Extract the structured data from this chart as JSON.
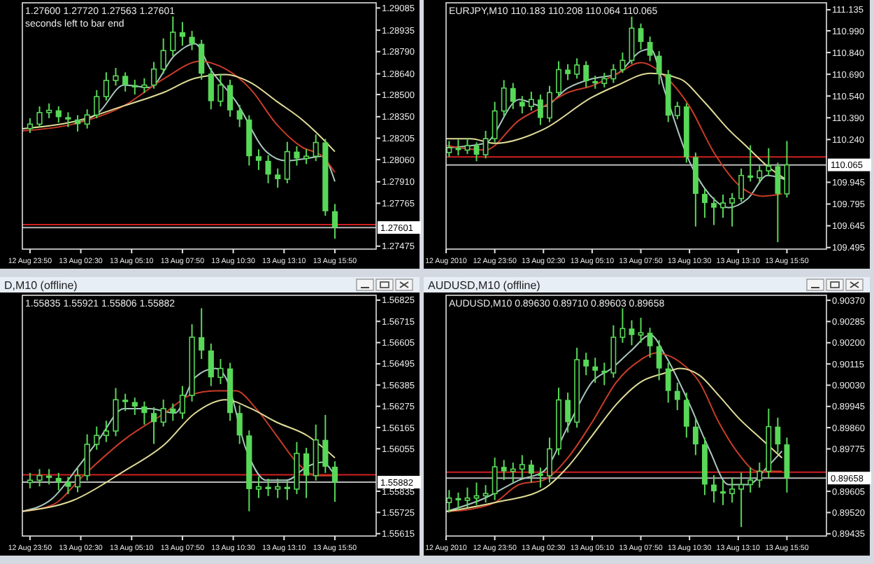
{
  "chart_data": [
    {
      "type": "candlestick",
      "subtitle": "1.27600 1.27720 1.27563 1.27601",
      "annotations": [
        "seconds left to bar end"
      ],
      "color": "#58d858",
      "x": [
        "2010-08-12T23:50",
        "2010-08-13T00:20",
        "2010-08-13T00:50",
        "2010-08-13T01:20",
        "2010-08-13T01:50",
        "2010-08-13T02:20",
        "2010-08-13T02:50",
        "2010-08-13T03:20",
        "2010-08-13T03:50",
        "2010-08-13T04:20",
        "2010-08-13T04:50",
        "2010-08-13T05:20",
        "2010-08-13T05:50",
        "2010-08-13T06:20",
        "2010-08-13T06:50",
        "2010-08-13T07:20",
        "2010-08-13T07:50",
        "2010-08-13T08:20",
        "2010-08-13T08:50",
        "2010-08-13T09:20",
        "2010-08-13T09:50",
        "2010-08-13T10:20",
        "2010-08-13T10:50",
        "2010-08-13T11:20",
        "2010-08-13T11:50",
        "2010-08-13T12:20",
        "2010-08-13T12:50",
        "2010-08-13T13:20",
        "2010-08-13T13:50",
        "2010-08-13T14:20",
        "2010-08-13T14:50",
        "2010-08-13T15:20",
        "2010-08-13T15:50"
      ],
      "ohlc": [
        [
          1.2827,
          1.2834,
          1.2824,
          1.283
        ],
        [
          1.283,
          1.2842,
          1.2828,
          1.28378
        ],
        [
          1.28378,
          1.2844,
          1.2834,
          1.28393
        ],
        [
          1.28393,
          1.2842,
          1.2831,
          1.28347
        ],
        [
          1.28347,
          1.2838,
          1.2828,
          1.28331
        ],
        [
          1.28331,
          1.2836,
          1.2825,
          1.283
        ],
        [
          1.283,
          1.284,
          1.2827,
          1.28362
        ],
        [
          1.28362,
          1.2853,
          1.2834,
          1.28486
        ],
        [
          1.28486,
          1.2865,
          1.2846,
          1.28595
        ],
        [
          1.28595,
          1.2868,
          1.2856,
          1.28626
        ],
        [
          1.28626,
          1.2865,
          1.2852,
          1.28564
        ],
        [
          1.28564,
          1.286,
          1.285,
          1.28548
        ],
        [
          1.28548,
          1.2861,
          1.2851,
          1.28564
        ],
        [
          1.28564,
          1.2872,
          1.2854,
          1.28672
        ],
        [
          1.28672,
          1.2888,
          1.2864,
          1.28797
        ],
        [
          1.28797,
          1.29027,
          1.2876,
          1.28921
        ],
        [
          1.28921,
          1.2899,
          1.2883,
          1.2889
        ],
        [
          1.2889,
          1.2893,
          1.288,
          1.28843
        ],
        [
          1.28843,
          1.2887,
          1.286,
          1.28641
        ],
        [
          1.28641,
          1.2868,
          1.284,
          1.28455
        ],
        [
          1.28455,
          1.2864,
          1.2842,
          1.28564
        ],
        [
          1.28564,
          1.286,
          1.2835,
          1.28393
        ],
        [
          1.28393,
          1.2843,
          1.2828,
          1.28331
        ],
        [
          1.28331,
          1.2836,
          1.2802,
          1.28083
        ],
        [
          1.28083,
          1.2813,
          1.2799,
          1.28052
        ],
        [
          1.28052,
          1.2809,
          1.279,
          1.27959
        ],
        [
          1.27959,
          1.28,
          1.2787,
          1.27928
        ],
        [
          1.27928,
          1.2818,
          1.279,
          1.28114
        ],
        [
          1.28114,
          1.2815,
          1.2802,
          1.28068
        ],
        [
          1.28068,
          1.2813,
          1.2803,
          1.28083
        ],
        [
          1.28083,
          1.2823,
          1.2805,
          1.28176
        ],
        [
          1.28176,
          1.282,
          1.2768,
          1.27711
        ],
        [
          1.27711,
          1.2776,
          1.27525,
          1.27601
        ]
      ],
      "series": [
        {
          "type": "line",
          "color": "#a8c8c0",
          "x": [
            "2010-08-13T02:06",
            "2010-08-13T03:26",
            "2010-08-13T04:46",
            "2010-08-13T06:06",
            "2010-08-13T07:26",
            "2010-08-13T08:30",
            "2010-08-13T09:18",
            "2010-08-13T10:38",
            "2010-08-13T12:14",
            "2010-08-13T13:18",
            "2010-08-13T14:22",
            "2010-08-13T15:10",
            "2010-08-13T15:50"
          ],
          "values": [
            1.283,
            1.28378,
            1.28564,
            1.28548,
            1.28766,
            1.28843,
            1.28672,
            1.28455,
            1.28114,
            1.28052,
            1.28068,
            1.28083,
            1.27912
          ]
        },
        {
          "type": "line",
          "color": "#c83c28",
          "x": [
            "2010-08-12T23:26",
            "2010-08-13T02:06",
            "2010-08-13T04:46",
            "2010-08-13T06:54",
            "2010-08-13T08:46",
            "2010-08-13T10:06",
            "2010-08-13T11:26",
            "2010-08-13T12:46",
            "2010-08-13T14:06",
            "2010-08-13T15:10",
            "2010-08-13T15:50"
          ],
          "values": [
            1.28254,
            1.283,
            1.28424,
            1.2861,
            1.28725,
            1.28672,
            1.28533,
            1.283,
            1.28145,
            1.28083,
            1.27974
          ]
        },
        {
          "type": "line",
          "color": "#e0dc98",
          "x": [
            "2010-08-12T23:26",
            "2010-08-13T02:06",
            "2010-08-13T04:46",
            "2010-08-13T06:54",
            "2010-08-13T08:30",
            "2010-08-13T10:06",
            "2010-08-13T11:26",
            "2010-08-13T12:46",
            "2010-08-13T14:06",
            "2010-08-13T14:54",
            "2010-08-13T15:50"
          ],
          "values": [
            1.28269,
            1.28316,
            1.28424,
            1.28517,
            1.2861,
            1.28635,
            1.28579,
            1.28455,
            1.28331,
            1.28238,
            1.28114
          ]
        }
      ],
      "xlim": [
        "2010-08-12T23:26",
        "2010-08-13T18:00"
      ],
      "xticks": [
        {
          "value": "2010-08-12T23:50",
          "label": "12 Aug 23:50"
        },
        {
          "value": "2010-08-13T02:30",
          "label": "13 Aug 02:30"
        },
        {
          "value": "2010-08-13T05:10",
          "label": "13 Aug 05:10"
        },
        {
          "value": "2010-08-13T07:50",
          "label": "13 Aug 07:50"
        },
        {
          "value": "2010-08-13T10:30",
          "label": "13 Aug 10:30"
        },
        {
          "value": "2010-08-13T13:10",
          "label": "13 Aug 13:10"
        },
        {
          "value": "2010-08-13T15:50",
          "label": "13 Aug 15:50"
        }
      ],
      "ylim": [
        1.27455,
        1.2912
      ],
      "yticks": [
        1.29085,
        1.28935,
        {
          "value": 1.2879,
          "label": "1.28790"
        },
        {
          "value": 1.2864,
          "label": "1.28640"
        },
        {
          "value": 1.285,
          "label": "1.28500"
        },
        {
          "value": 1.2835,
          "label": "1.28350"
        },
        1.28205,
        {
          "value": 1.2806,
          "label": "1.28060"
        },
        {
          "value": 1.2791,
          "label": "1.27910"
        },
        1.27765,
        1.27475
      ],
      "ref_lines": [
        {
          "axis": "y",
          "value": 1.27621,
          "label": null,
          "color": "#d02020"
        },
        {
          "axis": "y",
          "value": 1.27601,
          "label": "1.27601",
          "color": "#b8b8b8"
        }
      ]
    },
    {
      "type": "candlestick",
      "subtitle": "EURJPY,M10 110.183 110.208 110.064 110.065",
      "color": "#58d858",
      "x": [
        "2010-08-12T21:20",
        "2010-08-12T21:50",
        "2010-08-12T22:20",
        "2010-08-12T22:50",
        "2010-08-12T23:20",
        "2010-08-12T23:50",
        "2010-08-13T00:20",
        "2010-08-13T00:50",
        "2010-08-13T01:20",
        "2010-08-13T01:50",
        "2010-08-13T02:20",
        "2010-08-13T02:50",
        "2010-08-13T03:20",
        "2010-08-13T03:50",
        "2010-08-13T04:20",
        "2010-08-13T04:50",
        "2010-08-13T05:20",
        "2010-08-13T05:50",
        "2010-08-13T06:20",
        "2010-08-13T06:50",
        "2010-08-13T07:20",
        "2010-08-13T07:50",
        "2010-08-13T08:20",
        "2010-08-13T08:50",
        "2010-08-13T09:20",
        "2010-08-13T09:50",
        "2010-08-13T10:20",
        "2010-08-13T10:50",
        "2010-08-13T11:20",
        "2010-08-13T11:50",
        "2010-08-13T12:20",
        "2010-08-13T12:50",
        "2010-08-13T13:20",
        "2010-08-13T13:50",
        "2010-08-13T14:20",
        "2010-08-13T14:50",
        "2010-08-13T15:20",
        "2010-08-13T15:50"
      ],
      "ohlc": [
        [
          110.15,
          110.23,
          110.12,
          110.183
        ],
        [
          110.183,
          110.24,
          110.13,
          110.167
        ],
        [
          110.167,
          110.25,
          110.14,
          110.198
        ],
        [
          110.198,
          110.22,
          110.09,
          110.135
        ],
        [
          110.135,
          110.3,
          110.11,
          110.246
        ],
        [
          110.246,
          110.5,
          110.22,
          110.437
        ],
        [
          110.437,
          110.65,
          110.4,
          110.595
        ],
        [
          110.595,
          110.63,
          110.45,
          110.5
        ],
        [
          110.5,
          110.54,
          110.42,
          110.468
        ],
        [
          110.468,
          110.57,
          110.44,
          110.516
        ],
        [
          110.516,
          110.55,
          110.34,
          110.389
        ],
        [
          110.389,
          110.61,
          110.36,
          110.564
        ],
        [
          110.564,
          110.78,
          110.54,
          110.722
        ],
        [
          110.722,
          110.76,
          110.65,
          110.691
        ],
        [
          110.691,
          110.8,
          110.66,
          110.754
        ],
        [
          110.754,
          110.78,
          110.6,
          110.643
        ],
        [
          110.643,
          110.68,
          110.59,
          110.627
        ],
        [
          110.627,
          110.7,
          110.6,
          110.659
        ],
        [
          110.659,
          110.76,
          110.63,
          110.722
        ],
        [
          110.722,
          110.84,
          110.7,
          110.786
        ],
        [
          110.786,
          111.087,
          110.76,
          111.008
        ],
        [
          111.008,
          111.04,
          110.86,
          110.913
        ],
        [
          110.913,
          110.95,
          110.78,
          110.818
        ],
        [
          110.818,
          110.85,
          110.62,
          110.691
        ],
        [
          110.691,
          110.72,
          110.36,
          110.405
        ],
        [
          110.405,
          110.5,
          110.38,
          110.468
        ],
        [
          110.468,
          110.49,
          110.08,
          110.119
        ],
        [
          110.119,
          110.15,
          109.64,
          109.865
        ],
        [
          109.865,
          109.9,
          109.7,
          109.802
        ],
        [
          109.802,
          109.84,
          109.65,
          109.77
        ],
        [
          109.77,
          109.86,
          109.7,
          109.802
        ],
        [
          109.802,
          109.87,
          109.64,
          109.833
        ],
        [
          109.833,
          110.04,
          109.81,
          109.992
        ],
        [
          109.992,
          110.2,
          109.95,
          109.976
        ],
        [
          109.976,
          110.06,
          109.94,
          110.024
        ],
        [
          110.024,
          110.18,
          109.99,
          110.056
        ],
        [
          110.056,
          110.08,
          109.532,
          109.865
        ],
        [
          109.865,
          110.23,
          109.84,
          110.065
        ]
      ],
      "series": [
        {
          "type": "line",
          "color": "#a8c8c0",
          "x": [
            "2010-08-12T21:10",
            "2010-08-12T23:18",
            "2010-08-13T01:10",
            "2010-08-13T02:30",
            "2010-08-13T03:50",
            "2010-08-13T05:10",
            "2010-08-13T06:30",
            "2010-08-13T07:50",
            "2010-08-13T08:22",
            "2010-08-13T09:10",
            "2010-08-13T10:30",
            "2010-08-13T11:34",
            "2010-08-13T12:38",
            "2010-08-13T13:42",
            "2010-08-13T14:46",
            "2010-08-13T15:50"
          ],
          "values": [
            110.183,
            110.214,
            110.516,
            110.468,
            110.595,
            110.659,
            110.691,
            110.849,
            110.865,
            110.564,
            110.087,
            109.865,
            109.77,
            109.833,
            109.992,
            109.96
          ]
        },
        {
          "type": "line",
          "color": "#c83c28",
          "x": [
            "2010-08-12T21:10",
            "2010-08-12T23:18",
            "2010-08-13T01:10",
            "2010-08-13T02:30",
            "2010-08-13T03:50",
            "2010-08-13T05:10",
            "2010-08-13T06:30",
            "2010-08-13T07:50",
            "2010-08-13T09:10",
            "2010-08-13T10:30",
            "2010-08-13T11:50",
            "2010-08-13T13:10",
            "2010-08-13T14:30",
            "2010-08-13T15:34"
          ],
          "values": [
            110.198,
            110.167,
            110.373,
            110.468,
            110.564,
            110.611,
            110.691,
            110.77,
            110.675,
            110.468,
            110.151,
            109.929,
            109.849,
            109.865
          ]
        },
        {
          "type": "line",
          "color": "#e0dc98",
          "x": [
            "2010-08-12T21:10",
            "2010-08-12T22:30",
            "2010-08-12T23:50",
            "2010-08-13T02:30",
            "2010-08-13T05:10",
            "2010-08-13T06:30",
            "2010-08-13T08:22",
            "2010-08-13T09:58",
            "2010-08-13T11:18",
            "2010-08-13T12:38",
            "2010-08-13T13:42",
            "2010-08-13T14:46",
            "2010-08-13T15:50"
          ],
          "values": [
            110.246,
            110.246,
            110.214,
            110.31,
            110.532,
            110.611,
            110.697,
            110.659,
            110.5,
            110.31,
            110.183,
            110.056,
            109.96
          ]
        }
      ],
      "xlim": [
        "2010-08-12T21:10",
        "2010-08-13T18:00"
      ],
      "xticks": [
        {
          "value": "2010-08-12T21:10",
          "label": "12 Aug 2010"
        },
        {
          "value": "2010-08-12T23:50",
          "label": "12 Aug 23:50"
        },
        {
          "value": "2010-08-13T02:30",
          "label": "13 Aug 02:30"
        },
        {
          "value": "2010-08-13T05:10",
          "label": "13 Aug 05:10"
        },
        {
          "value": "2010-08-13T07:50",
          "label": "13 Aug 07:50"
        },
        {
          "value": "2010-08-13T10:30",
          "label": "13 Aug 10:30"
        },
        {
          "value": "2010-08-13T13:10",
          "label": "13 Aug 13:10"
        },
        {
          "value": "2010-08-13T15:50",
          "label": "13 Aug 15:50"
        }
      ],
      "ylim": [
        109.484,
        111.183
      ],
      "yticks": [
        111.135,
        {
          "value": 110.99,
          "label": "110.990"
        },
        {
          "value": 110.84,
          "label": "110.840"
        },
        {
          "value": 110.69,
          "label": "110.690"
        },
        {
          "value": 110.54,
          "label": "110.540"
        },
        {
          "value": 110.39,
          "label": "110.390"
        },
        {
          "value": 110.24,
          "label": "110.240"
        },
        109.945,
        109.795,
        109.645,
        109.495
      ],
      "ref_lines": [
        {
          "axis": "y",
          "value": 110.12,
          "label": null,
          "color": "#d02020"
        },
        {
          "axis": "y",
          "value": 110.065,
          "label": "110.065",
          "color": "#b8b8b8"
        }
      ]
    },
    {
      "type": "candlestick",
      "title": "D,M10 (offline)",
      "subtitle": "1.55835 1.55921 1.55806 1.55882",
      "color": "#58d858",
      "x": [
        "2010-08-12T23:50",
        "2010-08-13T00:20",
        "2010-08-13T00:50",
        "2010-08-13T01:20",
        "2010-08-13T01:50",
        "2010-08-13T02:20",
        "2010-08-13T02:50",
        "2010-08-13T03:20",
        "2010-08-13T03:50",
        "2010-08-13T04:20",
        "2010-08-13T04:50",
        "2010-08-13T05:20",
        "2010-08-13T05:50",
        "2010-08-13T06:20",
        "2010-08-13T06:50",
        "2010-08-13T07:20",
        "2010-08-13T07:50",
        "2010-08-13T08:20",
        "2010-08-13T08:50",
        "2010-08-13T09:20",
        "2010-08-13T09:50",
        "2010-08-13T10:20",
        "2010-08-13T10:50",
        "2010-08-13T11:20",
        "2010-08-13T11:50",
        "2010-08-13T12:20",
        "2010-08-13T12:50",
        "2010-08-13T13:20",
        "2010-08-13T13:50",
        "2010-08-13T14:20",
        "2010-08-13T14:50",
        "2010-08-13T15:20",
        "2010-08-13T15:50"
      ],
      "ohlc": [
        [
          1.5588,
          1.5593,
          1.5585,
          1.55892
        ],
        [
          1.55892,
          1.5595,
          1.5586,
          1.55916
        ],
        [
          1.55916,
          1.5595,
          1.5587,
          1.55904
        ],
        [
          1.55904,
          1.5593,
          1.5584,
          1.55882
        ],
        [
          1.55882,
          1.5591,
          1.5582,
          1.55858
        ],
        [
          1.55858,
          1.5596,
          1.5583,
          1.55916
        ],
        [
          1.55916,
          1.5613,
          1.5589,
          1.56078
        ],
        [
          1.56078,
          1.5617,
          1.5605,
          1.56124
        ],
        [
          1.56124,
          1.562,
          1.5609,
          1.56147
        ],
        [
          1.56147,
          1.5637,
          1.5612,
          1.56309
        ],
        [
          1.56309,
          1.5634,
          1.5625,
          1.56297
        ],
        [
          1.56297,
          1.5632,
          1.5623,
          1.56274
        ],
        [
          1.56274,
          1.563,
          1.5618,
          1.5624
        ],
        [
          1.5624,
          1.5627,
          1.5608,
          1.56193
        ],
        [
          1.56193,
          1.5631,
          1.5617,
          1.56263
        ],
        [
          1.56263,
          1.5629,
          1.562,
          1.5624
        ],
        [
          1.5624,
          1.5638,
          1.5621,
          1.56332
        ],
        [
          1.56332,
          1.567,
          1.563,
          1.56633
        ],
        [
          1.56633,
          1.56783,
          1.5652,
          1.56564
        ],
        [
          1.56564,
          1.566,
          1.5638,
          1.56425
        ],
        [
          1.56425,
          1.5652,
          1.5639,
          1.56471
        ],
        [
          1.56471,
          1.565,
          1.562,
          1.5624
        ],
        [
          1.5624,
          1.5628,
          1.5608,
          1.56124
        ],
        [
          1.56124,
          1.5615,
          1.55731,
          1.55846
        ],
        [
          1.55846,
          1.5591,
          1.558,
          1.55858
        ],
        [
          1.55858,
          1.559,
          1.5581,
          1.55846
        ],
        [
          1.55846,
          1.559,
          1.558,
          1.55858
        ],
        [
          1.55858,
          1.5589,
          1.5579,
          1.55846
        ],
        [
          1.55846,
          1.5609,
          1.5582,
          1.56031
        ],
        [
          1.56031,
          1.5606,
          1.558,
          1.55916
        ],
        [
          1.55916,
          1.5618,
          1.5589,
          1.56101
        ],
        [
          1.56101,
          1.5623,
          1.5593,
          1.55962
        ],
        [
          1.55962,
          1.5599,
          1.5578,
          1.55882
        ]
      ],
      "series": [
        {
          "type": "line",
          "color": "#a8c8c0",
          "x": [
            "2010-08-12T23:26",
            "2010-08-13T01:02",
            "2010-08-13T02:22",
            "2010-08-13T03:26",
            "2010-08-13T04:46",
            "2010-08-13T06:06",
            "2010-08-13T07:26",
            "2010-08-13T08:30",
            "2010-08-13T09:34",
            "2010-08-13T10:06",
            "2010-08-13T11:10",
            "2010-08-13T12:14",
            "2010-08-13T13:18",
            "2010-08-13T14:22",
            "2010-08-13T15:10",
            "2010-08-13T15:50"
          ],
          "values": [
            1.55731,
            1.558,
            1.55962,
            1.56101,
            1.56263,
            1.56263,
            1.5624,
            1.56425,
            1.56471,
            1.56425,
            1.56054,
            1.55892,
            1.55892,
            1.55962,
            1.55985,
            1.55916
          ]
        },
        {
          "type": "line",
          "color": "#c83c28",
          "x": [
            "2010-08-12T23:26",
            "2010-08-13T01:02",
            "2010-08-13T02:38",
            "2010-08-13T04:46",
            "2010-08-13T06:54",
            "2010-08-13T08:14",
            "2010-08-13T09:34",
            "2010-08-13T10:38",
            "2010-08-13T11:42",
            "2010-08-13T12:46",
            "2010-08-13T13:50",
            "2010-08-13T14:54",
            "2010-08-13T15:50"
          ],
          "values": [
            1.55731,
            1.55765,
            1.55916,
            1.56101,
            1.5624,
            1.56332,
            1.56355,
            1.56355,
            1.56263,
            1.56124,
            1.55985,
            1.55916,
            1.55916
          ]
        },
        {
          "type": "line",
          "color": "#e0dc98",
          "x": [
            "2010-08-12T23:26",
            "2010-08-13T02:06",
            "2010-08-13T04:46",
            "2010-08-13T06:54",
            "2010-08-13T08:30",
            "2010-08-13T10:06",
            "2010-08-13T11:26",
            "2010-08-13T12:46",
            "2010-08-13T14:22",
            "2010-08-13T15:50"
          ],
          "values": [
            1.55731,
            1.55788,
            1.55939,
            1.56078,
            1.5624,
            1.56309,
            1.56263,
            1.56193,
            1.56124,
            1.56008
          ]
        }
      ],
      "xlim": [
        "2010-08-12T23:26",
        "2010-08-13T18:00"
      ],
      "xticks": [
        {
          "value": "2010-08-12T23:50",
          "label": "12 Aug 23:50"
        },
        {
          "value": "2010-08-13T02:30",
          "label": "13 Aug 02:30"
        },
        {
          "value": "2010-08-13T05:10",
          "label": "13 Aug 05:10"
        },
        {
          "value": "2010-08-13T07:50",
          "label": "13 Aug 07:50"
        },
        {
          "value": "2010-08-13T10:30",
          "label": "13 Aug 10:30"
        },
        {
          "value": "2010-08-13T13:10",
          "label": "13 Aug 13:10"
        },
        {
          "value": "2010-08-13T15:50",
          "label": "13 Aug 15:50"
        }
      ],
      "ylim": [
        1.55603,
        1.5685
      ],
      "yticks": [
        1.56825,
        1.56715,
        1.56605,
        1.56495,
        1.56385,
        1.56275,
        1.56165,
        1.56055,
        1.55835,
        1.55725,
        1.55615
      ],
      "ref_lines": [
        {
          "axis": "y",
          "value": 1.5592,
          "label": null,
          "color": "#d02020"
        },
        {
          "axis": "y",
          "value": 1.55882,
          "label": "1.55882",
          "color": "#b8b8b8"
        }
      ]
    },
    {
      "type": "candlestick",
      "title": "AUDUSD,M10 (offline)",
      "subtitle": "AUDUSD,M10 0.89630 0.89710 0.89603 0.89658",
      "color": "#58d858",
      "x": [
        "2010-08-12T21:20",
        "2010-08-12T21:50",
        "2010-08-12T22:20",
        "2010-08-12T22:50",
        "2010-08-12T23:20",
        "2010-08-12T23:50",
        "2010-08-13T00:20",
        "2010-08-13T00:50",
        "2010-08-13T01:20",
        "2010-08-13T01:50",
        "2010-08-13T02:20",
        "2010-08-13T02:50",
        "2010-08-13T03:20",
        "2010-08-13T03:50",
        "2010-08-13T04:20",
        "2010-08-13T04:50",
        "2010-08-13T05:20",
        "2010-08-13T05:50",
        "2010-08-13T06:20",
        "2010-08-13T06:50",
        "2010-08-13T07:20",
        "2010-08-13T07:50",
        "2010-08-13T08:20",
        "2010-08-13T08:50",
        "2010-08-13T09:20",
        "2010-08-13T09:50",
        "2010-08-13T10:20",
        "2010-08-13T10:50",
        "2010-08-13T11:20",
        "2010-08-13T11:50",
        "2010-08-13T12:20",
        "2010-08-13T12:50",
        "2010-08-13T13:20",
        "2010-08-13T13:50",
        "2010-08-13T14:20",
        "2010-08-13T14:50",
        "2010-08-13T15:20",
        "2010-08-13T15:50"
      ],
      "ohlc": [
        [
          0.8956,
          0.8961,
          0.8952,
          0.89578
        ],
        [
          0.89578,
          0.896,
          0.8953,
          0.89569
        ],
        [
          0.89569,
          0.8962,
          0.8954,
          0.89578
        ],
        [
          0.89578,
          0.8964,
          0.8955,
          0.89587
        ],
        [
          0.89587,
          0.8963,
          0.8956,
          0.89596
        ],
        [
          0.89596,
          0.8974,
          0.8957,
          0.89703
        ],
        [
          0.89703,
          0.8973,
          0.8965,
          0.89685
        ],
        [
          0.89685,
          0.8972,
          0.8964,
          0.89694
        ],
        [
          0.89694,
          0.8975,
          0.8966,
          0.89712
        ],
        [
          0.89712,
          0.8973,
          0.8964,
          0.89676
        ],
        [
          0.89676,
          0.897,
          0.8962,
          0.89667
        ],
        [
          0.89667,
          0.8982,
          0.8964,
          0.89775
        ],
        [
          0.89775,
          0.9002,
          0.8975,
          0.89971
        ],
        [
          0.89971,
          0.9,
          0.8984,
          0.89882
        ],
        [
          0.89882,
          0.9018,
          0.8986,
          0.90132
        ],
        [
          0.90132,
          0.9016,
          0.9007,
          0.90105
        ],
        [
          0.90105,
          0.9014,
          0.9004,
          0.90088
        ],
        [
          0.90088,
          0.9012,
          0.9003,
          0.90079
        ],
        [
          0.90079,
          0.9027,
          0.9006,
          0.90222
        ],
        [
          0.90222,
          0.90338,
          0.902,
          0.90257
        ],
        [
          0.90257,
          0.9029,
          0.9019,
          0.90231
        ],
        [
          0.90231,
          0.903,
          0.902,
          0.9024
        ],
        [
          0.9024,
          0.9026,
          0.9014,
          0.90186
        ],
        [
          0.90186,
          0.9021,
          0.9005,
          0.90097
        ],
        [
          0.90097,
          0.9012,
          0.8996,
          0.90007
        ],
        [
          0.90007,
          0.9004,
          0.8993,
          0.89971
        ],
        [
          0.89971,
          0.9,
          0.8982,
          0.89864
        ],
        [
          0.89864,
          0.899,
          0.8975,
          0.89793
        ],
        [
          0.89793,
          0.8982,
          0.8959,
          0.89632
        ],
        [
          0.89632,
          0.8967,
          0.8956,
          0.89605
        ],
        [
          0.89605,
          0.8965,
          0.8955,
          0.89596
        ],
        [
          0.89596,
          0.8966,
          0.8956,
          0.89614
        ],
        [
          0.89614,
          0.8968,
          0.89462,
          0.89632
        ],
        [
          0.89632,
          0.897,
          0.896,
          0.8965
        ],
        [
          0.8965,
          0.8972,
          0.8962,
          0.89685
        ],
        [
          0.89685,
          0.89936,
          0.8966,
          0.89864
        ],
        [
          0.89864,
          0.899,
          0.8976,
          0.89793
        ],
        [
          0.89793,
          0.8982,
          0.896,
          0.89658
        ]
      ],
      "series": [
        {
          "type": "line",
          "color": "#a8c8c0",
          "x": [
            "2010-08-12T21:10",
            "2010-08-12T23:18",
            "2010-08-13T01:10",
            "2010-08-13T02:30",
            "2010-08-13T03:50",
            "2010-08-13T05:10",
            "2010-08-13T06:14",
            "2010-08-13T07:18",
            "2010-08-13T08:22",
            "2010-08-13T09:10",
            "2010-08-13T10:30",
            "2010-08-13T11:34",
            "2010-08-13T12:38",
            "2010-08-13T13:42",
            "2010-08-13T14:46",
            "2010-08-13T15:34"
          ],
          "values": [
            0.89524,
            0.89578,
            0.8965,
            0.89685,
            0.89864,
            0.90043,
            0.90097,
            0.90168,
            0.90231,
            0.9015,
            0.89954,
            0.89775,
            0.89632,
            0.89632,
            0.89703,
            0.89766
          ]
        },
        {
          "type": "line",
          "color": "#c83c28",
          "x": [
            "2010-08-12T21:10",
            "2010-08-12T22:30",
            "2010-08-12T23:50",
            "2010-08-13T01:10",
            "2010-08-13T02:30",
            "2010-08-13T03:50",
            "2010-08-13T05:10",
            "2010-08-13T06:30",
            "2010-08-13T07:50",
            "2010-08-13T08:38",
            "2010-08-13T09:58",
            "2010-08-13T11:02",
            "2010-08-13T12:06",
            "2010-08-13T13:10",
            "2010-08-13T14:14",
            "2010-08-13T15:34"
          ],
          "values": [
            0.89524,
            0.89533,
            0.8956,
            0.89632,
            0.8965,
            0.89739,
            0.89882,
            0.90043,
            0.90132,
            0.90159,
            0.90123,
            0.90043,
            0.89882,
            0.89757,
            0.89685,
            0.89685
          ]
        },
        {
          "type": "line",
          "color": "#e0dc98",
          "x": [
            "2010-08-12T21:10",
            "2010-08-12T23:50",
            "2010-08-13T02:30",
            "2010-08-13T03:50",
            "2010-08-13T05:10",
            "2010-08-13T06:30",
            "2010-08-13T07:50",
            "2010-08-13T09:10",
            "2010-08-13T09:58",
            "2010-08-13T11:02",
            "2010-08-13T12:06",
            "2010-08-13T13:10",
            "2010-08-13T14:30",
            "2010-08-13T15:34"
          ],
          "values": [
            0.89524,
            0.8956,
            0.89614,
            0.89703,
            0.89828,
            0.89954,
            0.90043,
            0.90079,
            0.90097,
            0.9007,
            0.89989,
            0.899,
            0.8981,
            0.89739
          ]
        }
      ],
      "xlim": [
        "2010-08-12T21:10",
        "2010-08-13T18:00"
      ],
      "xticks": [
        {
          "value": "2010-08-12T21:10",
          "label": "12 Aug 2010"
        },
        {
          "value": "2010-08-12T23:50",
          "label": "12 Aug 23:50"
        },
        {
          "value": "2010-08-13T02:30",
          "label": "13 Aug 02:30"
        },
        {
          "value": "2010-08-13T05:10",
          "label": "13 Aug 05:10"
        },
        {
          "value": "2010-08-13T07:50",
          "label": "13 Aug 07:50"
        },
        {
          "value": "2010-08-13T10:30",
          "label": "13 Aug 10:30"
        },
        {
          "value": "2010-08-13T13:10",
          "label": "13 Aug 13:10"
        },
        {
          "value": "2010-08-13T15:50",
          "label": "13 Aug 15:50"
        }
      ],
      "ylim": [
        0.89426,
        0.9039
      ],
      "yticks": [
        {
          "value": 0.9037,
          "label": "0.90370"
        },
        0.90285,
        {
          "value": 0.902,
          "label": "0.90200"
        },
        0.90115,
        {
          "value": 0.9003,
          "label": "0.90030"
        },
        0.89945,
        {
          "value": 0.8986,
          "label": "0.89860"
        },
        0.89775,
        0.89605,
        {
          "value": 0.8952,
          "label": "0.89520"
        },
        0.89435
      ],
      "ref_lines": [
        {
          "axis": "y",
          "value": 0.89682,
          "label": null,
          "color": "#d02020"
        },
        {
          "axis": "y",
          "value": 0.89658,
          "label": "0.89658",
          "color": "#b8b8b8"
        }
      ]
    }
  ]
}
